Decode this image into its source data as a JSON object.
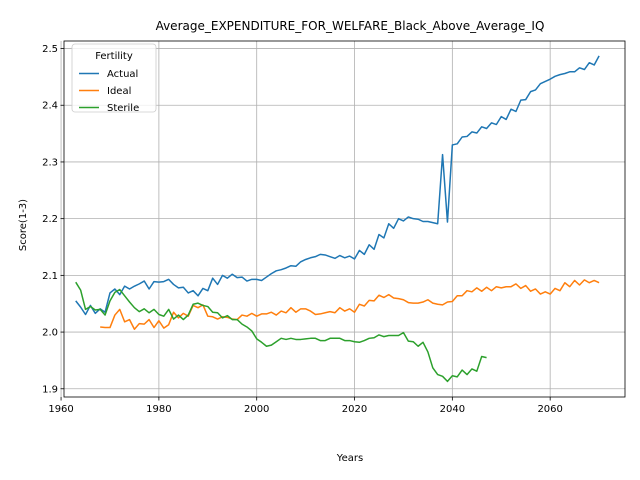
{
  "chart_data": {
    "type": "line",
    "title": "Average_EXPENDITURE_FOR_WELFARE_Black_Above_Average_IQ",
    "xlabel": "Years",
    "ylabel": "Score(1-3)",
    "xlim": [
      1960.6,
      2075.3
    ],
    "ylim": [
      1.8855,
      2.5133
    ],
    "xticks": [
      1960,
      1980,
      2000,
      2020,
      2040,
      2060
    ],
    "yticks": [
      1.9,
      2.0,
      2.1,
      2.2,
      2.3,
      2.4,
      2.5
    ],
    "ytick_labels": [
      "1.9",
      "2.0",
      "2.1",
      "2.2",
      "2.3",
      "2.4",
      "2.5"
    ],
    "grid": true,
    "legend": {
      "title": "Fertility",
      "placement": "top-left"
    },
    "series": [
      {
        "name": "Actual",
        "color": "#1f77b4",
        "x": [
          1963,
          1964,
          1965,
          1966,
          1967,
          1968,
          1969,
          1970,
          1971,
          1972,
          1973,
          1974,
          1975,
          1976,
          1977,
          1978,
          1979,
          1980,
          1981,
          1982,
          1983,
          1984,
          1985,
          1986,
          1987,
          1988,
          1989,
          1990,
          1991,
          1992,
          1993,
          1994,
          1995,
          1996,
          1997,
          1998,
          1999,
          2000,
          2001,
          2002,
          2003,
          2004,
          2005,
          2006,
          2007,
          2008,
          2009,
          2010,
          2011,
          2012,
          2013,
          2014,
          2015,
          2016,
          2017,
          2018,
          2019,
          2020,
          2021,
          2022,
          2023,
          2024,
          2025,
          2026,
          2027,
          2028,
          2029,
          2030,
          2031,
          2032,
          2033,
          2034,
          2035,
          2036,
          2037,
          2038,
          2039,
          2040,
          2041,
          2042,
          2043,
          2044,
          2045,
          2046,
          2047,
          2048,
          2049,
          2050,
          2051,
          2052,
          2053,
          2054,
          2055,
          2056,
          2057,
          2058,
          2059,
          2060,
          2061,
          2062,
          2063,
          2064,
          2065,
          2066,
          2067,
          2068,
          2069,
          2070
        ],
        "values": [
          2.055,
          2.044,
          2.031,
          2.047,
          2.033,
          2.041,
          2.035,
          2.069,
          2.076,
          2.066,
          2.081,
          2.076,
          2.081,
          2.085,
          2.09,
          2.076,
          2.089,
          2.088,
          2.089,
          2.093,
          2.084,
          2.078,
          2.079,
          2.069,
          2.073,
          2.064,
          2.077,
          2.073,
          2.095,
          2.084,
          2.1,
          2.095,
          2.102,
          2.096,
          2.097,
          2.09,
          2.093,
          2.093,
          2.091,
          2.097,
          2.103,
          2.108,
          2.11,
          2.113,
          2.117,
          2.116,
          2.124,
          2.128,
          2.131,
          2.133,
          2.137,
          2.136,
          2.133,
          2.13,
          2.135,
          2.131,
          2.134,
          2.129,
          2.144,
          2.137,
          2.154,
          2.146,
          2.172,
          2.166,
          2.191,
          2.183,
          2.2,
          2.196,
          2.203,
          2.2,
          2.199,
          2.195,
          2.195,
          2.193,
          2.191,
          2.313,
          2.194,
          2.33,
          2.332,
          2.344,
          2.345,
          2.353,
          2.351,
          2.362,
          2.359,
          2.369,
          2.366,
          2.38,
          2.375,
          2.393,
          2.389,
          2.409,
          2.41,
          2.424,
          2.427,
          2.438,
          2.442,
          2.446,
          2.451,
          2.454,
          2.456,
          2.459,
          2.459,
          2.466,
          2.463,
          2.475,
          2.471,
          2.487
        ]
      },
      {
        "name": "Ideal",
        "color": "#ff7f0e",
        "x": [
          1968,
          1969,
          1970,
          1971,
          1972,
          1973,
          1974,
          1975,
          1976,
          1977,
          1978,
          1979,
          1980,
          1981,
          1982,
          1983,
          1984,
          1985,
          1986,
          1987,
          1988,
          1989,
          1990,
          1991,
          1992,
          1993,
          1994,
          1995,
          1996,
          1997,
          1998,
          1999,
          2000,
          2001,
          2002,
          2003,
          2004,
          2005,
          2006,
          2007,
          2008,
          2009,
          2010,
          2011,
          2012,
          2013,
          2014,
          2015,
          2016,
          2017,
          2018,
          2019,
          2020,
          2021,
          2022,
          2023,
          2024,
          2025,
          2026,
          2027,
          2028,
          2029,
          2030,
          2031,
          2032,
          2033,
          2034,
          2035,
          2036,
          2037,
          2038,
          2039,
          2040,
          2041,
          2042,
          2043,
          2044,
          2045,
          2046,
          2047,
          2048,
          2049,
          2050,
          2051,
          2052,
          2053,
          2054,
          2055,
          2056,
          2057,
          2058,
          2059,
          2060,
          2061,
          2062,
          2063,
          2064,
          2065,
          2066,
          2067,
          2068,
          2069,
          2070
        ],
        "values": [
          2.009,
          2.008,
          2.008,
          2.03,
          2.04,
          2.018,
          2.022,
          2.005,
          2.015,
          2.014,
          2.022,
          2.008,
          2.02,
          2.007,
          2.013,
          2.035,
          2.025,
          2.033,
          2.028,
          2.047,
          2.043,
          2.048,
          2.028,
          2.027,
          2.023,
          2.027,
          2.026,
          2.023,
          2.022,
          2.03,
          2.028,
          2.033,
          2.028,
          2.032,
          2.032,
          2.035,
          2.03,
          2.037,
          2.034,
          2.043,
          2.035,
          2.041,
          2.041,
          2.037,
          2.031,
          2.032,
          2.034,
          2.036,
          2.034,
          2.043,
          2.037,
          2.041,
          2.035,
          2.049,
          2.046,
          2.056,
          2.055,
          2.065,
          2.061,
          2.066,
          2.06,
          2.059,
          2.057,
          2.052,
          2.051,
          2.051,
          2.053,
          2.057,
          2.051,
          2.049,
          2.048,
          2.053,
          2.054,
          2.064,
          2.064,
          2.073,
          2.071,
          2.078,
          2.072,
          2.079,
          2.073,
          2.08,
          2.078,
          2.08,
          2.08,
          2.085,
          2.077,
          2.082,
          2.072,
          2.076,
          2.067,
          2.071,
          2.067,
          2.077,
          2.073,
          2.087,
          2.08,
          2.091,
          2.083,
          2.092,
          2.087,
          2.091,
          2.087
        ]
      },
      {
        "name": "Sterile",
        "color": "#2ca02c",
        "x": [
          1963,
          1964,
          1965,
          1966,
          1967,
          1968,
          1969,
          1970,
          1971,
          1972,
          1973,
          1974,
          1975,
          1976,
          1977,
          1978,
          1979,
          1980,
          1981,
          1982,
          1983,
          1984,
          1985,
          1986,
          1987,
          1988,
          1989,
          1990,
          1991,
          1992,
          1993,
          1994,
          1995,
          1996,
          1997,
          1998,
          1999,
          2000,
          2001,
          2002,
          2003,
          2004,
          2005,
          2006,
          2007,
          2008,
          2009,
          2010,
          2011,
          2012,
          2013,
          2014,
          2015,
          2016,
          2017,
          2018,
          2019,
          2020,
          2021,
          2022,
          2023,
          2024,
          2025,
          2026,
          2027,
          2028,
          2029,
          2030,
          2031,
          2032,
          2033,
          2034,
          2035,
          2036,
          2037,
          2038,
          2039,
          2040,
          2041,
          2042,
          2043,
          2044,
          2045,
          2046,
          2047
        ],
        "values": [
          2.088,
          2.074,
          2.04,
          2.045,
          2.039,
          2.04,
          2.03,
          2.055,
          2.07,
          2.075,
          2.064,
          2.053,
          2.043,
          2.036,
          2.041,
          2.034,
          2.04,
          2.031,
          2.028,
          2.04,
          2.023,
          2.03,
          2.022,
          2.03,
          2.049,
          2.051,
          2.047,
          2.045,
          2.035,
          2.034,
          2.025,
          2.029,
          2.022,
          2.022,
          2.014,
          2.009,
          2.002,
          1.988,
          1.982,
          1.975,
          1.977,
          1.983,
          1.989,
          1.987,
          1.989,
          1.987,
          1.987,
          1.988,
          1.989,
          1.989,
          1.985,
          1.985,
          1.989,
          1.989,
          1.989,
          1.985,
          1.985,
          1.983,
          1.982,
          1.985,
          1.989,
          1.99,
          1.995,
          1.992,
          1.994,
          1.994,
          1.994,
          1.999,
          1.984,
          1.983,
          1.975,
          1.982,
          1.965,
          1.937,
          1.925,
          1.922,
          1.913,
          1.923,
          1.921,
          1.933,
          1.925,
          1.935,
          1.931,
          1.957,
          1.955
        ]
      }
    ]
  }
}
